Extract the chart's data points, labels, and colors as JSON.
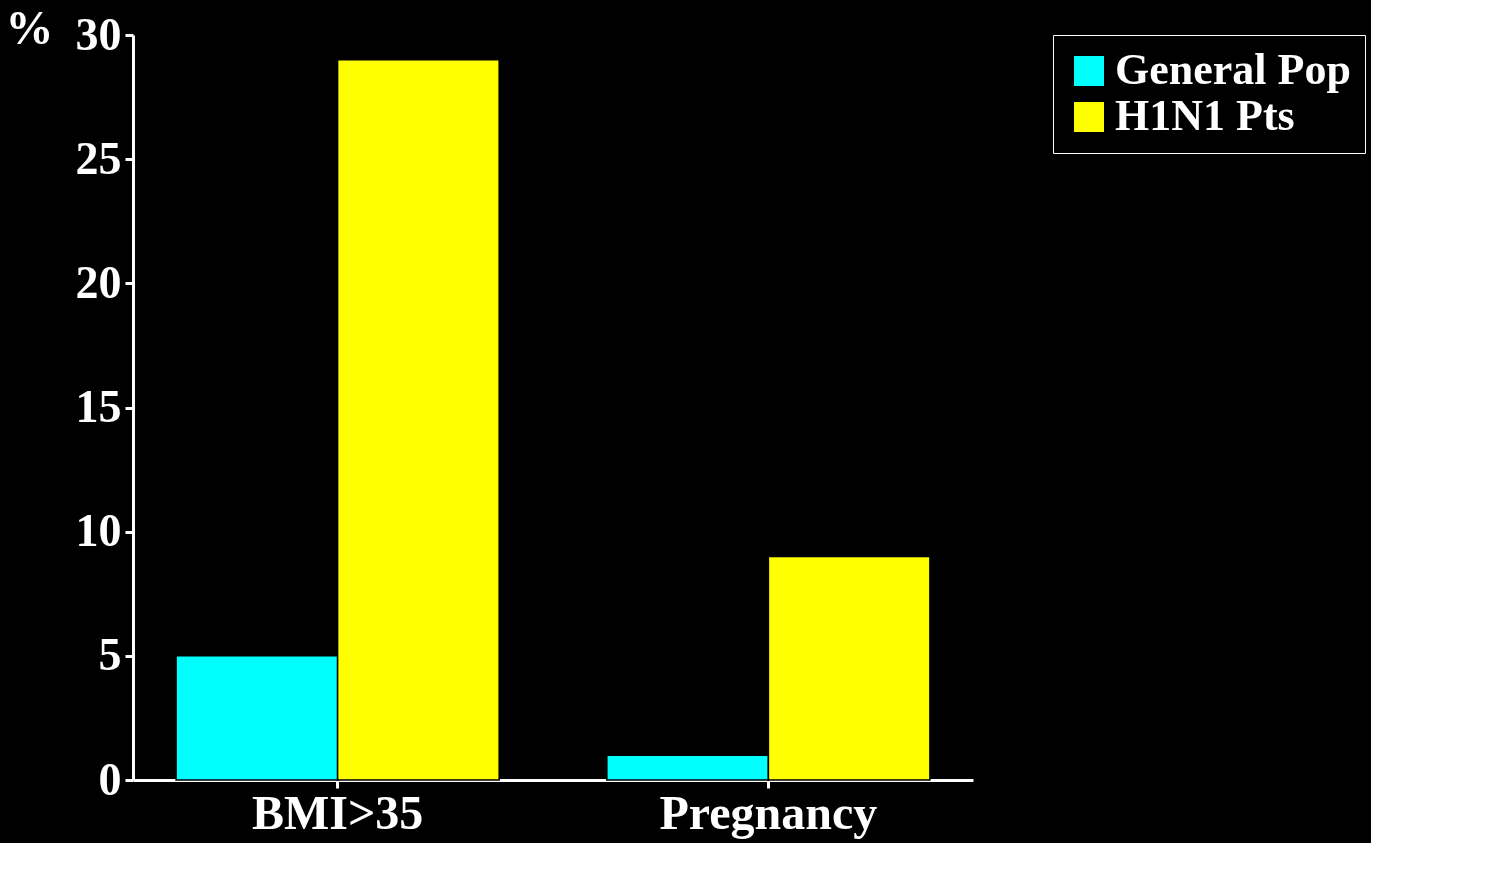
{
  "chart_data": {
    "type": "bar",
    "ylabel": "%",
    "categories": [
      "BMI>35",
      "Pregnancy"
    ],
    "series": [
      {
        "name": "General Pop",
        "color": "#00ffff",
        "values": [
          5,
          1
        ]
      },
      {
        "name": "H1N1 Pts",
        "color": "#ffff00",
        "values": [
          29,
          9
        ]
      }
    ],
    "ylim": [
      0,
      30
    ],
    "yticks": [
      0,
      5,
      10,
      15,
      20,
      25,
      30
    ],
    "grid": false,
    "legend": "right"
  }
}
